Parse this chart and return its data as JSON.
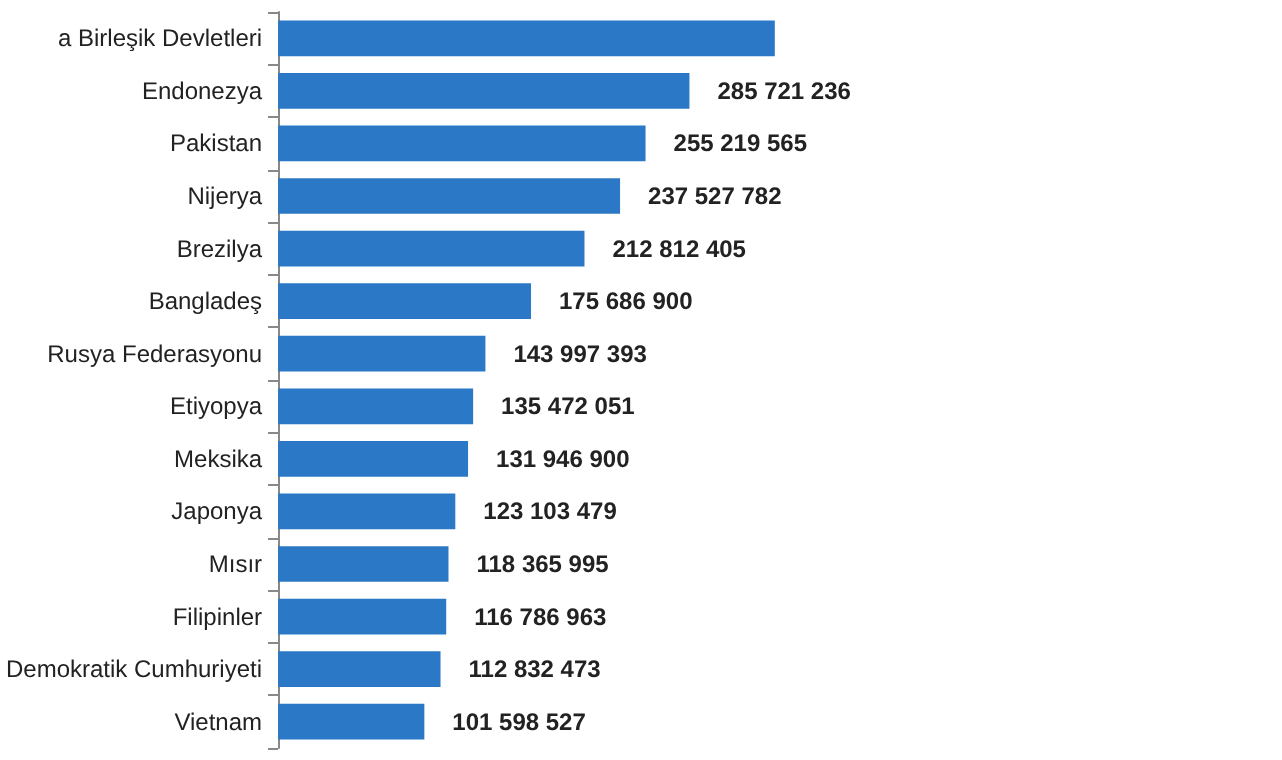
{
  "chart_data": {
    "type": "bar",
    "orientation": "horizontal",
    "categories": [
      "a Birleşik Devletleri",
      "Endonezya",
      "Pakistan",
      "Nijerya",
      "Brezilya",
      "Bangladeş",
      "Rusya Federasyonu",
      "Etiyopya",
      "Meksika",
      "Japonya",
      "Mısır",
      "Filipinler",
      "Demokratik Cumhuriyeti",
      "Vietnam"
    ],
    "values": [
      345000000,
      285721236,
      255219565,
      237527782,
      212812405,
      175686900,
      143997393,
      135472051,
      131946900,
      123103479,
      118365995,
      116786963,
      112832473,
      101598527
    ],
    "value_labels": [
      null,
      "285 721 236",
      "255 219 565",
      "237 527 782",
      "212 812 405",
      "175 686 900",
      "143 997 393",
      "135 472 051",
      "131 946 900",
      "123 103 479",
      "118 365 995",
      "116 786 963",
      "112 832 473",
      "101 598 527"
    ],
    "color": "#2a78c6",
    "tick_labels": "y"
  }
}
